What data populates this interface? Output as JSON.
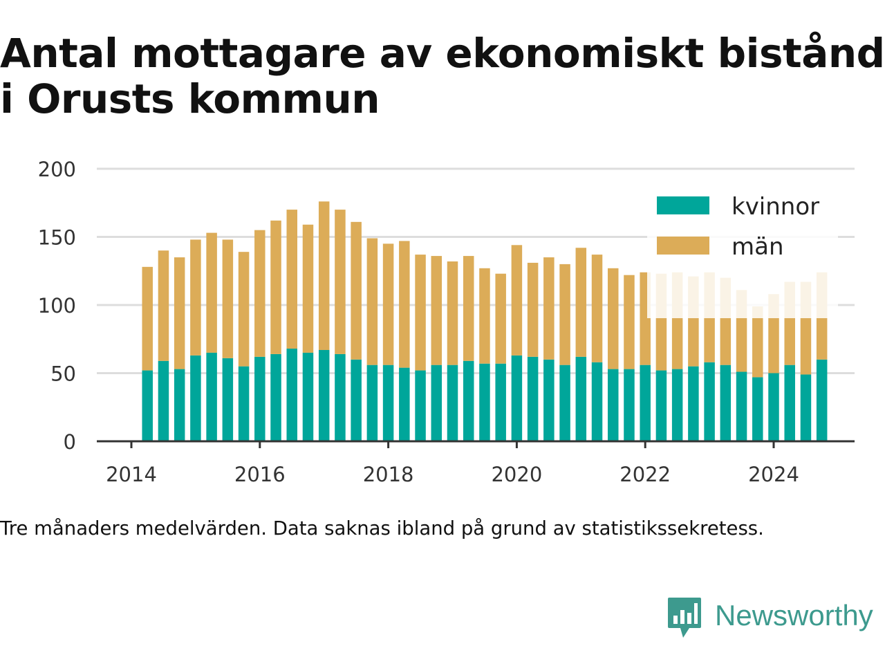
{
  "title": "Antal mottagare av ekonomiskt bistånd i Orusts kommun",
  "note": "Tre månaders medelvärden. Data saknas ibland på grund av statistikssekretess.",
  "brand": {
    "name": "Newsworthy",
    "color": "#3d9a8e",
    "icon": "newsworthy-logo-icon"
  },
  "colors": {
    "kvinnor": "#00a69a",
    "man": "#dcac58",
    "grid": "#dddddd",
    "axis": "#333333"
  },
  "chart_data": {
    "type": "bar",
    "stacked": true,
    "title": "Antal mottagare av ekonomiskt bistånd i Orusts kommun",
    "xlabel": "",
    "ylabel": "",
    "ylim": [
      0,
      200
    ],
    "xlim": [
      2014,
      2025.4
    ],
    "yticks": [
      0,
      50,
      100,
      150,
      200
    ],
    "xticks": [
      "2014",
      "2016",
      "2018",
      "2020",
      "2022",
      "2024"
    ],
    "grid": "horizontal",
    "legend": "top-right",
    "x": [
      "2014-04",
      "2014-07",
      "2014-10",
      "2015-01",
      "2015-04",
      "2015-07",
      "2015-10",
      "2016-01",
      "2016-04",
      "2016-07",
      "2016-10",
      "2017-01",
      "2017-04",
      "2017-07",
      "2017-10",
      "2018-01",
      "2018-04",
      "2018-07",
      "2018-10",
      "2019-01",
      "2019-04",
      "2019-07",
      "2019-10",
      "2020-01",
      "2020-04",
      "2020-07",
      "2020-10",
      "2021-01",
      "2021-04",
      "2021-07",
      "2021-10",
      "2022-01",
      "2022-04",
      "2022-07",
      "2022-10",
      "2023-01",
      "2023-04",
      "2023-07",
      "2023-10",
      "2024-01",
      "2024-04",
      "2024-07",
      "2024-10"
    ],
    "series": [
      {
        "name": "kvinnor",
        "values": [
          52,
          59,
          53,
          63,
          65,
          61,
          55,
          62,
          64,
          68,
          65,
          67,
          64,
          60,
          56,
          56,
          54,
          52,
          56,
          56,
          59,
          57,
          57,
          63,
          62,
          60,
          56,
          62,
          58,
          53,
          53,
          56,
          52,
          53,
          55,
          58,
          56,
          51,
          47,
          50,
          56,
          49,
          60
        ]
      },
      {
        "name": "män",
        "values": [
          76,
          81,
          82,
          85,
          88,
          87,
          84,
          93,
          98,
          102,
          94,
          109,
          106,
          101,
          93,
          89,
          93,
          85,
          80,
          76,
          77,
          70,
          66,
          81,
          69,
          75,
          74,
          80,
          79,
          74,
          69,
          68,
          71,
          71,
          66,
          66,
          64,
          60,
          52,
          58,
          61,
          68,
          64
        ]
      }
    ]
  }
}
